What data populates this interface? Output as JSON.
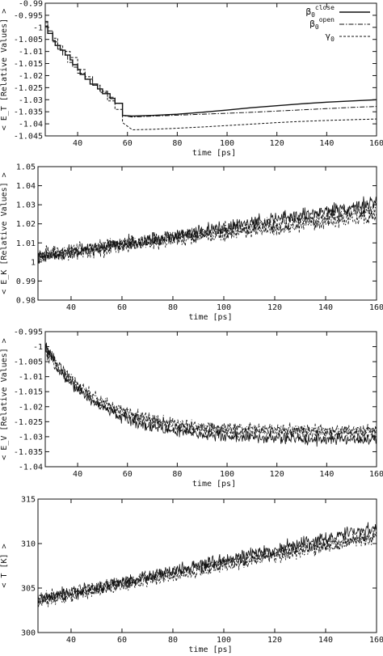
{
  "figure": {
    "panel_count": 4
  },
  "chart_data": [
    {
      "type": "line",
      "xlabel": "time [ps]",
      "ylabel": "< E_T [Relative Values] >",
      "xlim": [
        27,
        160
      ],
      "ylim": [
        -1.045,
        -0.99
      ],
      "xticks": [
        40,
        60,
        80,
        100,
        120,
        140,
        160
      ],
      "yticks": [
        -1.045,
        -1.04,
        -1.035,
        -1.03,
        -1.025,
        -1.02,
        -1.015,
        -1.01,
        -1.005,
        -1,
        -0.995,
        -0.99
      ],
      "grid": false,
      "legend": "top-right",
      "series": [
        {
          "name": "β0 close",
          "label_base": "β",
          "label_sub": "0",
          "label_sup": "close",
          "dash": "solid",
          "step": true,
          "x": [
            27,
            28,
            30,
            31,
            33,
            35,
            37,
            38,
            40,
            41,
            43,
            45,
            48,
            50,
            53,
            55,
            58,
            62,
            70,
            80,
            90,
            100,
            110,
            120,
            130,
            140,
            150,
            160
          ],
          "y": [
            -0.9995,
            -1.0025,
            -1.0055,
            -1.0075,
            -1.0095,
            -1.0115,
            -1.0135,
            -1.0155,
            -1.0175,
            -1.0195,
            -1.0215,
            -1.0235,
            -1.0255,
            -1.0275,
            -1.0295,
            -1.0315,
            -1.0365,
            -1.0368,
            -1.0365,
            -1.036,
            -1.0352,
            -1.0343,
            -1.0333,
            -1.0325,
            -1.0317,
            -1.031,
            -1.0305,
            -1.03
          ]
        },
        {
          "name": "β0 open",
          "label_base": "β",
          "label_sub": "0",
          "label_sup": "open",
          "dash": "dashdot",
          "step": true,
          "x": [
            27,
            28,
            30,
            32,
            34,
            36,
            38,
            40,
            43,
            46,
            49,
            52,
            55,
            58,
            62,
            70,
            80,
            90,
            100,
            110,
            120,
            130,
            140,
            150,
            160
          ],
          "y": [
            -0.9975,
            -1.0015,
            -1.006,
            -1.009,
            -1.0115,
            -1.0145,
            -1.0165,
            -1.019,
            -1.0215,
            -1.024,
            -1.0265,
            -1.029,
            -1.0315,
            -1.0365,
            -1.0372,
            -1.0368,
            -1.0364,
            -1.036,
            -1.0356,
            -1.0352,
            -1.0347,
            -1.0342,
            -1.0337,
            -1.0332,
            -1.0328
          ]
        },
        {
          "name": "γ0",
          "label_base": "γ",
          "label_sub": "0",
          "label_sup": "",
          "dash": "dashed",
          "step": true,
          "x": [
            27,
            28,
            30,
            32,
            34,
            37,
            40,
            43,
            46,
            49,
            52,
            55,
            58,
            62,
            70,
            80,
            90,
            100,
            110,
            120,
            130,
            140,
            150,
            160
          ],
          "y": [
            -0.998,
            -1.0015,
            -1.0045,
            -1.0075,
            -1.01,
            -1.0125,
            -1.0175,
            -1.0205,
            -1.024,
            -1.027,
            -1.0305,
            -1.034,
            -1.0395,
            -1.0425,
            -1.0423,
            -1.0418,
            -1.0413,
            -1.0407,
            -1.0401,
            -1.0395,
            -1.039,
            -1.0386,
            -1.0383,
            -1.038
          ]
        }
      ]
    },
    {
      "type": "line",
      "xlabel": "time [ps]",
      "ylabel": "< E_K [Relative Values] >",
      "xlim": [
        27,
        160
      ],
      "ylim": [
        0.98,
        1.05
      ],
      "xticks": [
        40,
        60,
        80,
        100,
        120,
        140,
        160
      ],
      "yticks": [
        0.98,
        0.99,
        1,
        1.01,
        1.02,
        1.03,
        1.04,
        1.05
      ],
      "grid": false,
      "legend": "none",
      "noisy": {
        "n": 600,
        "x_start": 27,
        "x_end": 160,
        "y_start": [
          1.002,
          1.004,
          1.003
        ],
        "y_end": [
          1.031,
          1.027,
          1.024
        ],
        "amplitude": [
          0.0055,
          0.0055,
          0.0055
        ],
        "dash": [
          "solid",
          "dashdot",
          "dashed"
        ]
      }
    },
    {
      "type": "line",
      "xlabel": "time [ps]",
      "ylabel": "< E_V [Relative Values] >",
      "xlim": [
        27,
        160
      ],
      "ylim": [
        -1.04,
        -0.995
      ],
      "xticks": [
        40,
        60,
        80,
        100,
        120,
        140,
        160
      ],
      "yticks": [
        -1.04,
        -1.035,
        -1.03,
        -1.025,
        -1.02,
        -1.015,
        -1.01,
        -1.005,
        -1,
        -0.995
      ],
      "grid": false,
      "legend": "none",
      "noisy": {
        "n": 600,
        "x_start": 27,
        "x_end": 160,
        "y_start": [
          -1.0005,
          -1.0,
          -1.0015
        ],
        "y_end": [
          -1.031,
          -1.028,
          -1.029
        ],
        "decay": 22,
        "amplitude": [
          0.003,
          0.0028,
          0.0028
        ],
        "dash": [
          "solid",
          "dashdot",
          "dashed"
        ]
      }
    },
    {
      "type": "line",
      "xlabel": "time [ps]",
      "ylabel": "< T [K] >",
      "xlim": [
        27,
        160
      ],
      "ylim": [
        300,
        315
      ],
      "xticks": [
        40,
        60,
        80,
        100,
        120,
        140,
        160
      ],
      "yticks": [
        300,
        305,
        310,
        315
      ],
      "grid": false,
      "legend": "none",
      "noisy": {
        "n": 600,
        "x_start": 27,
        "x_end": 160,
        "y_start": [
          303.6,
          303.9,
          303.4
        ],
        "y_end": [
          311.8,
          311.0,
          310.7
        ],
        "amplitude": [
          1.1,
          1.0,
          1.0
        ],
        "dash": [
          "solid",
          "dashdot",
          "dashed"
        ]
      }
    }
  ]
}
